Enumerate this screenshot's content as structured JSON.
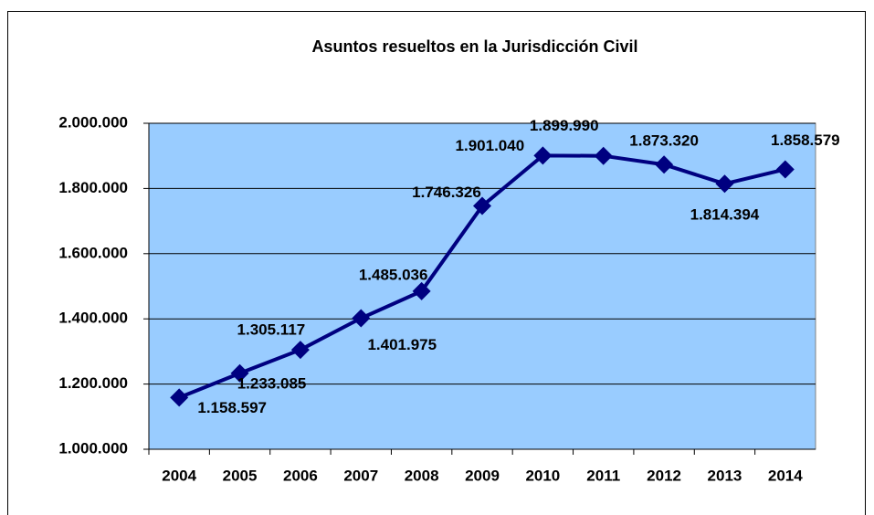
{
  "chart_data": {
    "type": "line",
    "title": "Asuntos resueltos en la Jurisdicción Civil",
    "categories": [
      "2004",
      "2005",
      "2006",
      "2007",
      "2008",
      "2009",
      "2010",
      "2011",
      "2012",
      "2013",
      "2014"
    ],
    "series": [
      {
        "name": "Asuntos resueltos",
        "color": "#000080",
        "values": [
          1158597,
          1233085,
          1305117,
          1401975,
          1485036,
          1746326,
          1901040,
          1899990,
          1873320,
          1814394,
          1858579
        ],
        "value_labels": [
          "1.158.597",
          "1.233.085",
          "1.305.117",
          "1.401.975",
          "1.485.036",
          "1.746.326",
          "1.901.040",
          "1.899.990",
          "1.873.320",
          "1.814.394",
          "1.858.579"
        ]
      }
    ],
    "ylim": [
      1000000,
      2000000
    ],
    "yticks": [
      {
        "value": 1000000,
        "label": "1.000.000"
      },
      {
        "value": 1200000,
        "label": "1.200.000"
      },
      {
        "value": 1400000,
        "label": "1.400.000"
      },
      {
        "value": 1600000,
        "label": "1.600.000"
      },
      {
        "value": 1800000,
        "label": "1.800.000"
      },
      {
        "value": 2000000,
        "label": "2.000.000"
      }
    ],
    "grid": true,
    "plot_background": "#99ccff"
  }
}
